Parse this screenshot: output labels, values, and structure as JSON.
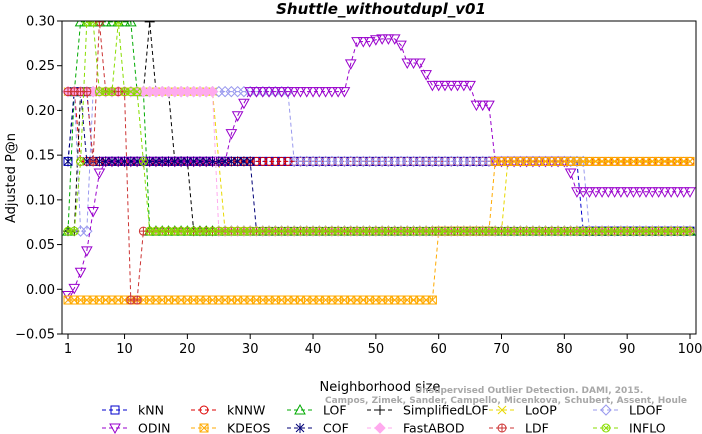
{
  "chart_data": {
    "type": "line",
    "title": "Shuttle_withoutdupl_v01",
    "xlabel": "Neighborhood size",
    "ylabel": "Adjusted P@n",
    "xlim": [
      1,
      100
    ],
    "ylim": [
      -0.05,
      0.3
    ],
    "xticks": [
      1,
      10,
      20,
      30,
      40,
      50,
      60,
      70,
      80,
      90,
      100
    ],
    "yticks": [
      -0.05,
      0.0,
      0.05,
      0.1,
      0.15,
      0.2,
      0.25,
      0.3
    ],
    "ytick_labels": [
      "−0.05",
      "0.00",
      "0.05",
      "0.10",
      "0.15",
      "0.20",
      "0.25",
      "0.30"
    ],
    "grid": false,
    "legend_position": "bottom",
    "credit": [
      "Unsupervised Outlier Detection. DAMI, 2015.",
      "Campos, Zimek, Sander, Campello, Micenkova, Schubert, Assent, Houle"
    ],
    "series": [
      {
        "name": "kNN",
        "color": "#0000cc",
        "marker": "square",
        "points": [
          [
            1,
            0.143
          ],
          [
            2,
            0.221
          ],
          [
            4,
            0.221
          ],
          [
            5,
            0.143
          ],
          [
            82,
            0.143
          ],
          [
            83,
            0.065
          ],
          [
            100,
            0.065
          ]
        ]
      },
      {
        "name": "kNNW",
        "color": "#dd0000",
        "marker": "circle",
        "points": [
          [
            1,
            0.221
          ],
          [
            3,
            0.143
          ],
          [
            100,
            0.143
          ]
        ]
      },
      {
        "name": "LOF",
        "color": "#00aa00",
        "marker": "triangle-up",
        "points": [
          [
            1,
            0.065
          ],
          [
            2,
            0.221
          ],
          [
            3,
            0.299
          ],
          [
            10,
            0.299
          ],
          [
            12,
            0.221
          ],
          [
            13,
            0.221
          ],
          [
            14,
            0.065
          ],
          [
            100,
            0.065
          ]
        ]
      },
      {
        "name": "SimplifiedLOF",
        "color": "#000000",
        "marker": "plus",
        "points": [
          [
            1,
            0.065
          ],
          [
            2,
            0.065
          ],
          [
            3,
            0.221
          ],
          [
            12,
            0.221
          ],
          [
            13,
            0.221
          ],
          [
            14,
            0.299
          ],
          [
            15,
            0.221
          ],
          [
            18,
            0.143
          ],
          [
            20,
            0.143
          ],
          [
            21,
            0.065
          ],
          [
            100,
            0.065
          ]
        ]
      },
      {
        "name": "LoOP",
        "color": "#e8d800",
        "marker": "x",
        "points": [
          [
            1,
            0.221
          ],
          [
            2,
            0.221
          ],
          [
            20,
            0.221
          ],
          [
            23,
            0.221
          ],
          [
            25,
            0.143
          ],
          [
            26,
            0.065
          ],
          [
            70,
            0.065
          ],
          [
            71,
            0.143
          ],
          [
            100,
            0.143
          ]
        ]
      },
      {
        "name": "LDOF",
        "color": "#9999ee",
        "marker": "diamond",
        "points": [
          [
            1,
            0.221
          ],
          [
            3,
            0.065
          ],
          [
            4,
            0.065
          ],
          [
            5,
            0.221
          ],
          [
            36,
            0.221
          ],
          [
            37,
            0.143
          ],
          [
            83,
            0.143
          ],
          [
            84,
            0.065
          ],
          [
            100,
            0.065
          ]
        ]
      },
      {
        "name": "ODIN",
        "color": "#9900cc",
        "marker": "triangle-down",
        "points": [
          [
            1,
            -0.007
          ],
          [
            2,
            0.001
          ],
          [
            3,
            0.019
          ],
          [
            4,
            0.043
          ],
          [
            5,
            0.087
          ],
          [
            6,
            0.13
          ],
          [
            7,
            0.143
          ],
          [
            26,
            0.143
          ],
          [
            27,
            0.174
          ],
          [
            28,
            0.194
          ],
          [
            29,
            0.208
          ],
          [
            30,
            0.221
          ],
          [
            45,
            0.221
          ],
          [
            46,
            0.252
          ],
          [
            47,
            0.277
          ],
          [
            48,
            0.277
          ],
          [
            49,
            0.277
          ],
          [
            50,
            0.279
          ],
          [
            51,
            0.28
          ],
          [
            52,
            0.28
          ],
          [
            53,
            0.28
          ],
          [
            54,
            0.273
          ],
          [
            55,
            0.253
          ],
          [
            56,
            0.253
          ],
          [
            57,
            0.253
          ],
          [
            58,
            0.24
          ],
          [
            59,
            0.228
          ],
          [
            60,
            0.228
          ],
          [
            65,
            0.228
          ],
          [
            66,
            0.206
          ],
          [
            67,
            0.206
          ],
          [
            68,
            0.206
          ],
          [
            69,
            0.143
          ],
          [
            80,
            0.143
          ],
          [
            81,
            0.13
          ],
          [
            82,
            0.109
          ],
          [
            100,
            0.109
          ]
        ]
      },
      {
        "name": "KDEOS",
        "color": "#ffaa00",
        "marker": "x-square",
        "points": [
          [
            1,
            -0.012
          ],
          [
            2,
            -0.012
          ],
          [
            59,
            -0.012
          ],
          [
            60,
            0.065
          ],
          [
            68,
            0.065
          ],
          [
            69,
            0.143
          ],
          [
            100,
            0.143
          ]
        ]
      },
      {
        "name": "COF",
        "color": "#000077",
        "marker": "asterisk",
        "points": [
          [
            1,
            0.143
          ],
          [
            2,
            0.221
          ],
          [
            3,
            0.221
          ],
          [
            4,
            0.143
          ],
          [
            30,
            0.143
          ],
          [
            31,
            0.065
          ],
          [
            100,
            0.065
          ]
        ]
      },
      {
        "name": "FastABOD",
        "color": "#ffaaee",
        "marker": "diamond-filled",
        "points": [
          [
            1,
            0.221
          ],
          [
            2,
            0.221
          ],
          [
            24,
            0.221
          ],
          [
            25,
            0.065
          ],
          [
            100,
            0.065
          ]
        ]
      },
      {
        "name": "LDF",
        "color": "#cc3333",
        "marker": "circle-plus",
        "points": [
          [
            1,
            0.221
          ],
          [
            4,
            0.221
          ],
          [
            5,
            0.143
          ],
          [
            6,
            0.299
          ],
          [
            7,
            0.221
          ],
          [
            10,
            0.221
          ],
          [
            11,
            -0.012
          ],
          [
            12,
            -0.012
          ],
          [
            13,
            0.065
          ],
          [
            100,
            0.065
          ]
        ]
      },
      {
        "name": "INFLO",
        "color": "#88dd00",
        "marker": "x-circle",
        "points": [
          [
            1,
            0.065
          ],
          [
            2,
            0.065
          ],
          [
            3,
            0.143
          ],
          [
            4,
            0.299
          ],
          [
            5,
            0.299
          ],
          [
            6,
            0.221
          ],
          [
            7,
            0.221
          ],
          [
            8,
            0.221
          ],
          [
            9,
            0.299
          ],
          [
            10,
            0.221
          ],
          [
            11,
            0.221
          ],
          [
            12,
            0.221
          ],
          [
            13,
            0.143
          ],
          [
            14,
            0.065
          ],
          [
            100,
            0.065
          ]
        ]
      }
    ]
  }
}
